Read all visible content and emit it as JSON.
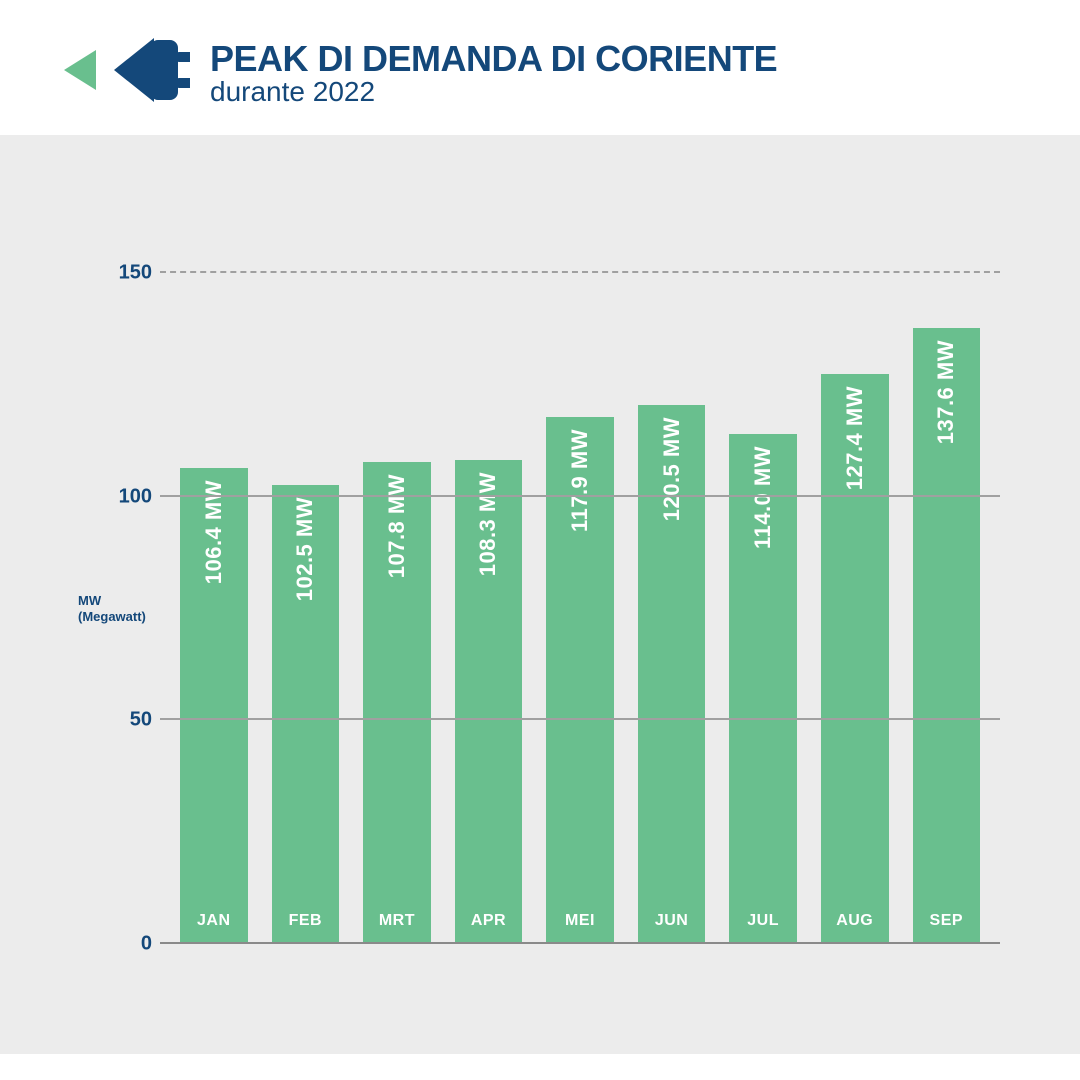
{
  "header": {
    "title": "PEAK DI DEMANDA DI CORIENTE",
    "subtitle": "durante 2022",
    "title_color": "#14487a",
    "subtitle_color": "#14487a",
    "title_fontsize": 36,
    "subtitle_fontsize": 28,
    "logo": {
      "arrow_color": "#69bf8e",
      "plug_color": "#14487a"
    }
  },
  "chart": {
    "type": "bar",
    "background_color": "#ececec",
    "bar_color": "#69bf8e",
    "grid_color": "#a0a0a0",
    "grid_color_baseline": "#8a8a8a",
    "axis_text_color": "#14487a",
    "unit": "MW",
    "axis_label_line1": "MW",
    "axis_label_line2": "(Megawatt)",
    "axis_label_fontsize": 13,
    "ytick_fontsize": 20,
    "ylim_min": 0,
    "ylim_max": 150,
    "yticks": [
      {
        "value": 0,
        "label": "0"
      },
      {
        "value": 50,
        "label": "50"
      },
      {
        "value": 100,
        "label": "100"
      },
      {
        "value": 150,
        "label": "150",
        "dashed": true
      }
    ],
    "bars": [
      {
        "month": "JAN",
        "value": 106.4,
        "label": "106.4 MW"
      },
      {
        "month": "FEB",
        "value": 102.5,
        "label": "102.5 MW"
      },
      {
        "month": "MRT",
        "value": 107.8,
        "label": "107.8 MW"
      },
      {
        "month": "APR",
        "value": 108.3,
        "label": "108.3 MW"
      },
      {
        "month": "MEI",
        "value": 117.9,
        "label": "117.9 MW"
      },
      {
        "month": "JUN",
        "value": 120.5,
        "label": "120.5 MW"
      },
      {
        "month": "JUL",
        "value": 114.0,
        "label": "114.0 MW"
      },
      {
        "month": "AUG",
        "value": 127.4,
        "label": "127.4 MW"
      },
      {
        "month": "SEP",
        "value": 137.6,
        "label": "137.6 MW"
      }
    ]
  }
}
